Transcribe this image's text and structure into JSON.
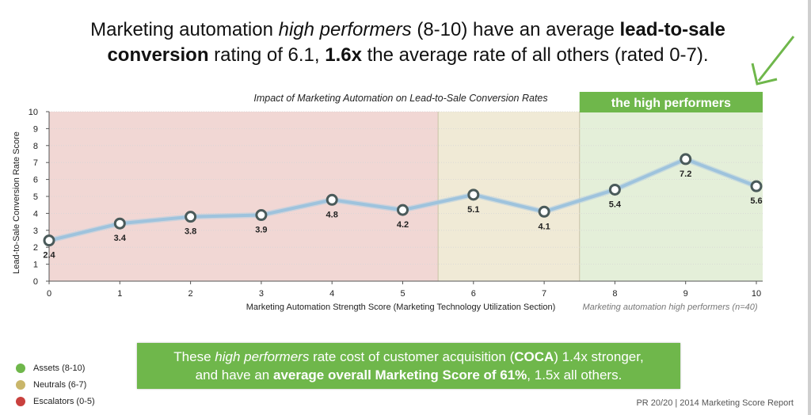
{
  "headline": {
    "p1": "Marketing automation ",
    "p2_italic": "high performers",
    "p3": " (8-10) have an average ",
    "p4_bold": "lead-to-sale conversion",
    "p5": " rating of 6.1, ",
    "p6_bold": "1.6x",
    "p7": " the average rate of all others (rated 0-7)."
  },
  "chart_data": {
    "type": "line",
    "title": "Impact of Marketing Automation on Lead-to-Sale Conversion Rates",
    "xlabel": "Marketing Automation Strength Score (Marketing Technology Utilization Section)",
    "ylabel": "Lead-to-Sale Conversion Rate Score",
    "x": [
      0,
      1,
      2,
      3,
      4,
      5,
      6,
      7,
      8,
      9,
      10
    ],
    "values": [
      2.4,
      3.4,
      3.8,
      3.9,
      4.8,
      4.2,
      5.1,
      4.1,
      5.4,
      7.2,
      5.6
    ],
    "data_labels": [
      "2.4",
      "3.4",
      "3.8",
      "3.9",
      "4.8",
      "4.2",
      "5.1",
      "4.1",
      "5.4",
      "7.2",
      "5.6"
    ],
    "xlim": [
      0,
      10
    ],
    "ylim": [
      0,
      10
    ],
    "yticks": [
      "0",
      "1",
      "2",
      "3",
      "4",
      "5",
      "6",
      "7",
      "8",
      "9",
      "10"
    ],
    "xticks": [
      "0",
      "1",
      "2",
      "3",
      "4",
      "5",
      "6",
      "7",
      "8",
      "9",
      "10"
    ],
    "bands": [
      {
        "name": "Escalators (0-5)",
        "from": 0,
        "to": 5.5,
        "color": "#f1d7d4"
      },
      {
        "name": "Neutrals (6-7)",
        "from": 5.5,
        "to": 7.5,
        "color": "#f0ead6"
      },
      {
        "name": "Assets (8-10)",
        "from": 7.5,
        "to": 10,
        "color": "#e4efd9"
      }
    ],
    "grid": true,
    "line_color": "#9ec3dd",
    "marker_color": "#4a5a5a",
    "high_performers_label": "the high performers",
    "high_performers_color": "#6fb74b",
    "note": "Marketing automation high performers (n=40)"
  },
  "legend": [
    {
      "label": "Assets (8-10)",
      "color": "#6fb74b"
    },
    {
      "label": "Neutrals (6-7)",
      "color": "#c9b66a"
    },
    {
      "label": "Escalators (0-5)",
      "color": "#c9413e"
    }
  ],
  "callout": {
    "a1": "These ",
    "a2_italic": "high performers",
    "a3": " rate cost of customer acquisition (",
    "a4_bold": "COCA",
    "a5": ") 1.4x stronger,",
    "b1": "and have an ",
    "b2_bold": "average overall Marketing Score of 61%",
    "b3": ", 1.5x all others."
  },
  "footer": "PR 20/20 | 2014 Marketing Score Report"
}
